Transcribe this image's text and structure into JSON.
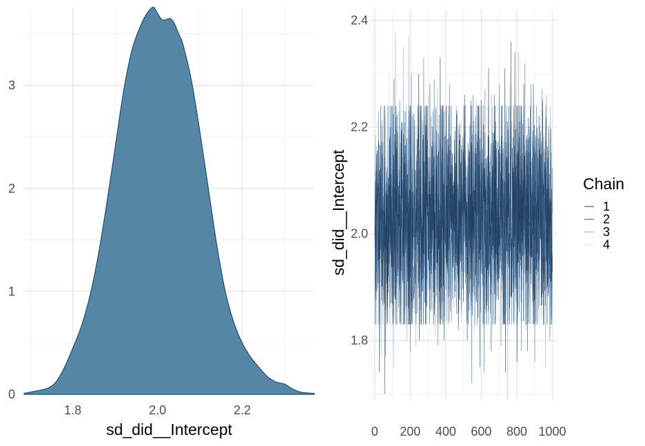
{
  "chart_data": [
    {
      "type": "area",
      "xlabel": "sd_did__Intercept",
      "ylabel": "",
      "xlim": [
        1.685,
        2.37
      ],
      "ylim": [
        0,
        3.75
      ],
      "xticks": [
        1.8,
        2.0,
        2.2
      ],
      "xtick_labels": [
        "1.8",
        "2.0",
        "2.2"
      ],
      "yticks": [
        0,
        1,
        2,
        3
      ],
      "ytick_labels": [
        "0",
        "1",
        "2",
        "3"
      ],
      "grid": true,
      "fill_color": "#5586a5",
      "line_color": "#1b4f75",
      "x": [
        1.685,
        1.71,
        1.74,
        1.76,
        1.78,
        1.8,
        1.82,
        1.84,
        1.86,
        1.88,
        1.9,
        1.92,
        1.94,
        1.96,
        1.975,
        1.99,
        2.0,
        2.01,
        2.02,
        2.03,
        2.04,
        2.05,
        2.06,
        2.08,
        2.1,
        2.12,
        2.14,
        2.16,
        2.18,
        2.2,
        2.22,
        2.24,
        2.26,
        2.28,
        2.3,
        2.32,
        2.34,
        2.37
      ],
      "y": [
        0.01,
        0.03,
        0.06,
        0.12,
        0.26,
        0.45,
        0.66,
        0.95,
        1.35,
        1.85,
        2.4,
        2.95,
        3.35,
        3.58,
        3.7,
        3.76,
        3.7,
        3.64,
        3.64,
        3.65,
        3.6,
        3.5,
        3.4,
        3.05,
        2.55,
        2.0,
        1.45,
        1.0,
        0.7,
        0.5,
        0.36,
        0.26,
        0.17,
        0.12,
        0.1,
        0.05,
        0.02,
        0.01
      ]
    },
    {
      "type": "line",
      "xlabel": "",
      "ylabel": "sd_did__Intercept",
      "xlim": [
        -30,
        1025
      ],
      "ylim": [
        1.69,
        2.42
      ],
      "xticks": [
        0,
        200,
        400,
        600,
        800,
        1000
      ],
      "xtick_labels": [
        "0",
        "200",
        "400",
        "600",
        "800",
        "1000"
      ],
      "yticks": [
        1.8,
        2.0,
        2.2,
        2.4
      ],
      "ytick_labels": [
        "1.8",
        "2.0",
        "2.2",
        "2.4"
      ],
      "grid": true,
      "iterations": 1000,
      "legend": {
        "title": "Chain",
        "position": "right",
        "entries": [
          "1",
          "2",
          "3",
          "4"
        ],
        "colors": [
          "#213f5e",
          "#4772a3",
          "#8aafd2",
          "#dbe6f2"
        ]
      },
      "series": [
        {
          "name": "1",
          "color": "#213f5e",
          "mean": 2.04,
          "sd": 0.105,
          "peaks": [
            [
              108,
              2.29
            ],
            [
              247,
              2.3
            ],
            [
              310,
              2.28
            ],
            [
              368,
              2.33
            ],
            [
              430,
              2.24
            ],
            [
              505,
              2.26
            ],
            [
              540,
              2.25
            ],
            [
              598,
              2.25
            ],
            [
              640,
              2.31
            ],
            [
              672,
              2.26
            ],
            [
              732,
              2.31
            ],
            [
              766,
              2.36
            ],
            [
              788,
              2.34
            ],
            [
              838,
              2.28
            ],
            [
              892,
              2.28
            ],
            [
              945,
              2.25
            ]
          ],
          "troughs": [
            [
              25,
              1.74
            ],
            [
              55,
              1.7
            ],
            [
              120,
              1.83
            ],
            [
              188,
              1.86
            ],
            [
              250,
              1.8
            ],
            [
              390,
              1.8
            ],
            [
              470,
              1.82
            ],
            [
              520,
              1.8
            ],
            [
              592,
              1.75
            ],
            [
              655,
              1.78
            ],
            [
              735,
              1.74
            ],
            [
              800,
              1.76
            ],
            [
              860,
              1.78
            ]
          ]
        },
        {
          "name": "2",
          "color": "#4772a3",
          "mean": 2.03,
          "sd": 0.1,
          "peaks": [
            [
              20,
              2.23
            ],
            [
              140,
              2.25
            ],
            [
              206,
              2.3
            ],
            [
              275,
              2.33
            ],
            [
              334,
              2.29
            ],
            [
              420,
              2.28
            ],
            [
              552,
              2.26
            ],
            [
              620,
              2.27
            ],
            [
              700,
              2.28
            ],
            [
              845,
              2.32
            ],
            [
              878,
              2.28
            ],
            [
              940,
              2.27
            ]
          ],
          "troughs": [
            [
              60,
              1.77
            ],
            [
              200,
              1.78
            ],
            [
              355,
              1.79
            ],
            [
              460,
              1.85
            ],
            [
              545,
              1.72
            ],
            [
              615,
              1.74
            ],
            [
              710,
              1.79
            ],
            [
              825,
              1.78
            ],
            [
              900,
              1.76
            ],
            [
              985,
              1.8
            ]
          ]
        },
        {
          "name": "3",
          "color": "#8aafd2",
          "mean": 2.02,
          "sd": 0.1,
          "peaks": [
            [
              116,
              2.38
            ],
            [
              160,
              2.35
            ],
            [
              190,
              2.37
            ],
            [
              230,
              2.26
            ],
            [
              300,
              2.26
            ],
            [
              352,
              2.27
            ],
            [
              450,
              2.2
            ],
            [
              570,
              2.25
            ],
            [
              658,
              2.26
            ],
            [
              760,
              2.28
            ],
            [
              808,
              2.34
            ],
            [
              850,
              2.29
            ],
            [
              965,
              2.26
            ]
          ],
          "troughs": [
            [
              35,
              1.77
            ],
            [
              105,
              1.75
            ],
            [
              180,
              1.8
            ],
            [
              230,
              1.79
            ],
            [
              340,
              1.81
            ],
            [
              430,
              1.84
            ],
            [
              560,
              1.82
            ],
            [
              748,
              1.69
            ],
            [
              850,
              1.82
            ],
            [
              960,
              1.75
            ]
          ]
        },
        {
          "name": "4",
          "color": "#dbe6f2",
          "mean": 2.02,
          "sd": 0.08,
          "peaks": [
            [
              80,
              2.3
            ],
            [
              330,
              2.22
            ],
            [
              480,
              2.21
            ],
            [
              690,
              2.25
            ],
            [
              920,
              2.22
            ]
          ],
          "troughs": [
            [
              90,
              1.82
            ],
            [
              320,
              1.86
            ],
            [
              700,
              1.82
            ],
            [
              980,
              1.85
            ]
          ]
        }
      ]
    }
  ]
}
